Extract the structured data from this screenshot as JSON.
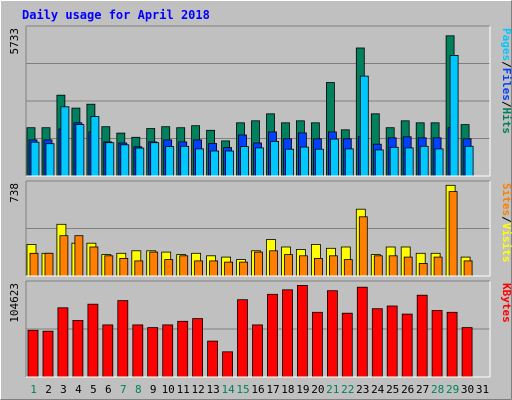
{
  "title": "Daily usage for April 2018",
  "colors": {
    "background": "#c0c0c0",
    "title": "#0000ff",
    "hits": "#00805c",
    "files": "#0040ff",
    "pages": "#00c8ff",
    "visits": "#ffff00",
    "sites": "#ff8000",
    "kbytes": "#ff0000",
    "separator": "#000000",
    "weekday": "#000000",
    "weekend": "#00805c",
    "grid": "#808080"
  },
  "chart_data": [
    {
      "type": "bar",
      "name": "hits-files-pages",
      "ymax_label": "5733",
      "ylim": [
        0,
        5733
      ],
      "side_labels": [
        "Pages",
        "/",
        "Files",
        "/",
        "Hits"
      ],
      "categories": [
        "1",
        "2",
        "3",
        "4",
        "5",
        "6",
        "7",
        "8",
        "9",
        "10",
        "11",
        "12",
        "13",
        "14",
        "15",
        "16",
        "17",
        "18",
        "19",
        "20",
        "21",
        "22",
        "23",
        "24",
        "25",
        "26",
        "27",
        "28",
        "29",
        "30",
        "31"
      ],
      "series": [
        {
          "name": "Hits",
          "values": [
            1870,
            1870,
            3130,
            2630,
            2780,
            1910,
            1660,
            1500,
            1840,
            1910,
            1870,
            1950,
            1770,
            1360,
            2060,
            2140,
            2410,
            2060,
            2140,
            2060,
            3620,
            1790,
            4960,
            2410,
            1870,
            2140,
            2060,
            2060,
            5430,
            1990,
            0
          ]
        },
        {
          "name": "Files",
          "values": [
            1400,
            1400,
            1820,
            2060,
            1710,
            1320,
            1280,
            1130,
            1320,
            1400,
            1320,
            1400,
            1260,
            1100,
            1590,
            1280,
            1710,
            1440,
            1670,
            1440,
            1710,
            1440,
            1520,
            1230,
            1480,
            1520,
            1480,
            1480,
            1870,
            1440,
            0
          ]
        },
        {
          "name": "Pages",
          "values": [
            1310,
            1250,
            2680,
            1990,
            2300,
            1290,
            1210,
            1080,
            1290,
            1140,
            1150,
            1050,
            970,
            970,
            1140,
            1090,
            1340,
            1040,
            1120,
            1040,
            1430,
            1050,
            3870,
            1010,
            1110,
            1090,
            1150,
            1050,
            4670,
            1150,
            0
          ]
        }
      ]
    },
    {
      "type": "bar",
      "name": "visits-sites",
      "ymax_label": "738",
      "ylim": [
        0,
        738
      ],
      "side_labels": [
        "Sites",
        "/",
        "Visits"
      ],
      "categories": [
        "1",
        "2",
        "3",
        "4",
        "5",
        "6",
        "7",
        "8",
        "9",
        "10",
        "11",
        "12",
        "13",
        "14",
        "15",
        "16",
        "17",
        "18",
        "19",
        "20",
        "21",
        "22",
        "23",
        "24",
        "25",
        "26",
        "27",
        "28",
        "29",
        "30",
        "31"
      ],
      "series": [
        {
          "name": "Visits",
          "values": [
            250,
            180,
            410,
            260,
            260,
            170,
            180,
            200,
            200,
            190,
            170,
            180,
            160,
            150,
            130,
            200,
            290,
            230,
            210,
            250,
            220,
            230,
            530,
            170,
            230,
            230,
            180,
            180,
            720,
            150,
            0
          ]
        },
        {
          "name": "Sites",
          "values": [
            180,
            180,
            320,
            320,
            230,
            160,
            140,
            120,
            190,
            130,
            160,
            120,
            120,
            110,
            110,
            190,
            200,
            170,
            160,
            140,
            160,
            130,
            470,
            160,
            160,
            150,
            100,
            150,
            670,
            120,
            0
          ]
        }
      ]
    },
    {
      "type": "bar",
      "name": "kbytes",
      "ymax_label": "104623",
      "ylim": [
        0,
        104623
      ],
      "side_labels": [
        "KBytes"
      ],
      "categories": [
        "1",
        "2",
        "3",
        "4",
        "5",
        "6",
        "7",
        "8",
        "9",
        "10",
        "11",
        "12",
        "13",
        "14",
        "15",
        "16",
        "17",
        "18",
        "19",
        "20",
        "21",
        "22",
        "23",
        "24",
        "25",
        "26",
        "27",
        "28",
        "29",
        "30",
        "31"
      ],
      "series": [
        {
          "name": "KBytes",
          "values": [
            52000,
            51000,
            77000,
            63000,
            81000,
            58000,
            85000,
            58000,
            55000,
            58000,
            62000,
            65000,
            40000,
            28000,
            86000,
            58000,
            92000,
            97000,
            102000,
            72000,
            96000,
            71000,
            100000,
            76000,
            79000,
            70000,
            91000,
            74000,
            72000,
            55000,
            0
          ]
        }
      ]
    }
  ]
}
